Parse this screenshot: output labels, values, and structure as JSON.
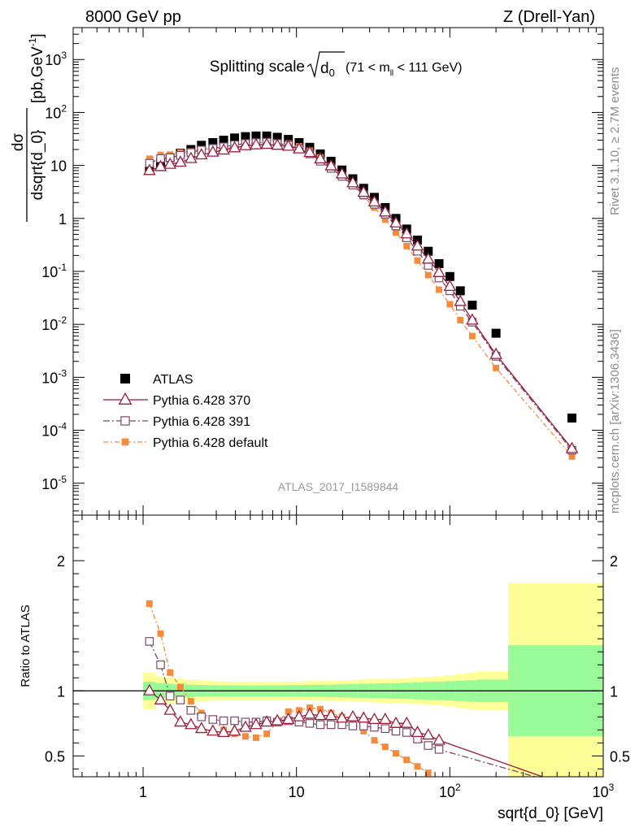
{
  "header": {
    "left": "8000 GeV pp",
    "right": "Z (Drell-Yan)"
  },
  "plot_title": {
    "main": "Splitting scale",
    "symbol": "d",
    "symbol_sub": "0",
    "range_pre": "(71 < m",
    "range_sub": "ll",
    "range_post": " < 111 GeV)"
  },
  "side_labels": {
    "rivet": "Rivet 3.1.10, ≥ 2.7M events",
    "mcplots": "mcplots.cern.ch [arXiv:1306.3436]"
  },
  "analysis_id": "ATLAS_2017_I1589844",
  "colors": {
    "atlas": "#000000",
    "py370": "#9a1b3c",
    "py391": "#7a4a6a",
    "pydef": "#f58a3a",
    "band_inner": "#98fb98",
    "band_outer": "#ffff99"
  },
  "chart_data": [
    {
      "type": "scatter",
      "panel": "main",
      "title": "",
      "ylabel": "dσ/dsqrt{d_0} [pb,GeV⁻¹]",
      "xlabel": "",
      "x_scale": "log",
      "y_scale": "log",
      "xlim": [
        0.35,
        1000
      ],
      "ylim": [
        2.5e-06,
        4000
      ],
      "x_ticks": [
        "1",
        "10",
        "10²",
        "10³"
      ],
      "y_ticks": [
        "10⁻⁵",
        "10⁻⁴",
        "10⁻³",
        "10⁻²",
        "10⁻¹",
        "1",
        "10",
        "10²",
        "10³"
      ],
      "legend_position": "bottom-left",
      "series": [
        {
          "name": "ATLAS",
          "style": "marker-square",
          "x": [
            1.1,
            1.3,
            1.5,
            1.75,
            2.05,
            2.4,
            2.85,
            3.35,
            3.95,
            4.65,
            5.45,
            6.4,
            7.5,
            8.85,
            10.4,
            12.2,
            14.3,
            16.8,
            19.8,
            23.3,
            27.4,
            32.2,
            37.9,
            44.5,
            52.3,
            61.5,
            72.3,
            85,
            100,
            117,
            140,
            200,
            625
          ],
          "y": [
            8,
            11,
            14,
            17,
            20,
            24,
            27,
            30,
            33,
            35,
            36,
            36,
            34,
            31,
            27,
            22,
            16.5,
            12,
            8.2,
            5.6,
            3.7,
            2.5,
            1.6,
            1.0,
            0.63,
            0.39,
            0.24,
            0.14,
            0.08,
            0.043,
            0.023,
            0.0068,
            0.00017
          ]
        },
        {
          "name": "Pythia 6.428 370",
          "style": "line-solid-triangle",
          "x": [
            1.1,
            1.3,
            1.5,
            1.75,
            2.05,
            2.4,
            2.85,
            3.35,
            3.95,
            4.65,
            5.45,
            6.4,
            7.5,
            8.85,
            10.4,
            12.2,
            14.3,
            16.8,
            19.8,
            23.3,
            27.4,
            32.2,
            37.9,
            44.5,
            52.3,
            61.5,
            72.3,
            85,
            100,
            117,
            140,
            200,
            625
          ],
          "y": [
            8,
            9.5,
            10.5,
            11.5,
            13.5,
            15.8,
            17.8,
            19.5,
            21.5,
            23.5,
            24.5,
            25,
            24,
            23,
            20.5,
            17.5,
            13.3,
            9.8,
            6.9,
            4.7,
            3.1,
            2.05,
            1.32,
            0.82,
            0.51,
            0.3,
            0.17,
            0.095,
            0.052,
            0.027,
            0.012,
            0.0027,
            4.5e-05
          ]
        },
        {
          "name": "Pythia 6.428 391",
          "style": "line-dashdot-open-square",
          "x": [
            1.1,
            1.3,
            1.5,
            1.75,
            2.05,
            2.4,
            2.85,
            3.35,
            3.95,
            4.65,
            5.45,
            6.4,
            7.5,
            8.85,
            10.4,
            12.2,
            14.3,
            16.8,
            19.8,
            23.3,
            27.4,
            32.2,
            37.9,
            44.5,
            52.3,
            61.5,
            72.3,
            85,
            100,
            117,
            140,
            200,
            625
          ],
          "y": [
            11,
            13.5,
            14,
            15.5,
            17.5,
            19.5,
            21,
            22.5,
            24.5,
            26,
            27,
            27.5,
            26,
            24,
            20.5,
            16.5,
            12,
            8.8,
            6.2,
            4.25,
            2.8,
            1.85,
            1.2,
            0.72,
            0.43,
            0.24,
            0.13,
            0.075,
            0.043,
            0.022,
            0.011,
            0.0025,
            4.2e-05
          ]
        },
        {
          "name": "Pythia 6.428 default",
          "style": "line-dashdot-filled-square",
          "x": [
            1.1,
            1.3,
            1.5,
            1.75,
            2.05,
            2.4,
            2.85,
            3.35,
            3.95,
            4.65,
            5.45,
            6.4,
            7.5,
            8.85,
            10.4,
            12.2,
            14.3,
            16.8,
            19.8,
            23.3,
            27.4,
            32.2,
            37.9,
            44.5,
            52.3,
            61.5,
            72.3,
            85,
            100,
            117,
            140,
            200,
            625
          ],
          "y": [
            13.4,
            15.8,
            16,
            17.5,
            18.5,
            20,
            21,
            21,
            22,
            23,
            23,
            24,
            26,
            26,
            23,
            19,
            14.2,
            9.7,
            6.6,
            4.3,
            2.6,
            1.6,
            0.95,
            0.54,
            0.3,
            0.16,
            0.085,
            0.045,
            0.024,
            0.012,
            0.006,
            0.0015,
            3.2e-05
          ]
        }
      ]
    },
    {
      "type": "line",
      "panel": "ratio",
      "title": "",
      "ylabel": "Ratio to ATLAS",
      "xlabel": "sqrt{d_0} [GeV]",
      "x_scale": "log",
      "y_scale": "linear",
      "xlim": [
        0.35,
        1000
      ],
      "ylim": [
        0.34,
        2.35
      ],
      "x_ticks": [
        "1",
        "10",
        "10²",
        "10³"
      ],
      "y_ticks": [
        "0.5",
        "1",
        "2"
      ],
      "bands": {
        "edges": [
          1,
          1.2,
          1.4,
          1.6,
          1.9,
          2.2,
          2.6,
          3.1,
          3.6,
          4.3,
          5,
          5.9,
          7,
          8.2,
          9.6,
          11.3,
          13.3,
          15.6,
          18.3,
          21.5,
          25.3,
          29.7,
          34.9,
          41,
          48.1,
          56.5,
          66.4,
          78,
          91.6,
          107.6,
          126.4,
          148.5,
          240,
          1000
        ],
        "inner": [
          0.07,
          0.06,
          0.055,
          0.05,
          0.048,
          0.045,
          0.044,
          0.043,
          0.042,
          0.042,
          0.042,
          0.042,
          0.043,
          0.044,
          0.045,
          0.046,
          0.047,
          0.048,
          0.05,
          0.052,
          0.054,
          0.056,
          0.058,
          0.06,
          0.062,
          0.065,
          0.068,
          0.071,
          0.074,
          0.078,
          0.082,
          0.086,
          0.35
        ],
        "outer": [
          0.14,
          0.11,
          0.1,
          0.09,
          0.085,
          0.08,
          0.075,
          0.072,
          0.07,
          0.07,
          0.07,
          0.07,
          0.07,
          0.07,
          0.072,
          0.074,
          0.076,
          0.078,
          0.08,
          0.083,
          0.086,
          0.089,
          0.092,
          0.095,
          0.098,
          0.102,
          0.107,
          0.112,
          0.12,
          0.13,
          0.14,
          0.15,
          0.83
        ]
      },
      "series": [
        {
          "name": "Pythia 6.428 370",
          "style": "line-solid-triangle",
          "x": [
            1.1,
            1.3,
            1.5,
            1.75,
            2.05,
            2.4,
            2.85,
            3.35,
            3.95,
            4.65,
            5.45,
            6.4,
            7.5,
            8.85,
            10.4,
            12.2,
            14.3,
            16.8,
            19.8,
            23.3,
            27.4,
            32.2,
            37.9,
            44.5,
            52.3,
            61.5,
            72.3,
            85,
            625
          ],
          "y": [
            1.0,
            0.93,
            0.85,
            0.76,
            0.74,
            0.71,
            0.69,
            0.68,
            0.69,
            0.72,
            0.74,
            0.76,
            0.77,
            0.78,
            0.8,
            0.82,
            0.81,
            0.81,
            0.79,
            0.8,
            0.79,
            0.78,
            0.78,
            0.75,
            0.75,
            0.68,
            0.66,
            0.62,
            0.26
          ]
        },
        {
          "name": "Pythia 6.428 391",
          "style": "line-dashdot-open-square",
          "x": [
            1.1,
            1.3,
            1.5,
            1.75,
            2.05,
            2.4,
            2.85,
            3.35,
            3.95,
            4.65,
            5.45,
            6.4,
            7.5,
            8.85,
            10.4,
            12.2,
            14.3,
            16.8,
            19.8,
            23.3,
            27.4,
            32.2,
            37.9,
            44.5,
            52.3,
            61.5,
            72.3,
            85,
            625
          ],
          "y": [
            1.38,
            1.2,
            0.96,
            0.93,
            0.85,
            0.8,
            0.78,
            0.77,
            0.77,
            0.76,
            0.76,
            0.77,
            0.76,
            0.77,
            0.76,
            0.75,
            0.74,
            0.74,
            0.74,
            0.73,
            0.73,
            0.72,
            0.71,
            0.69,
            0.68,
            0.63,
            0.58,
            0.55,
            0.26
          ]
        },
        {
          "name": "Pythia 6.428 default",
          "style": "line-dashdot-filled-square",
          "x": [
            1.1,
            1.3,
            1.5,
            1.75,
            2.05,
            2.4,
            2.85,
            3.35,
            3.95,
            4.65,
            5.45,
            6.4,
            7.5,
            8.85,
            10.4,
            12.2,
            14.3,
            16.8,
            19.8,
            23.3,
            27.4,
            32.2,
            37.9,
            44.5,
            52.3,
            61.5,
            72.3
          ],
          "y": [
            1.67,
            1.44,
            1.14,
            1.03,
            0.92,
            0.83,
            0.78,
            0.7,
            0.67,
            0.65,
            0.64,
            0.67,
            0.76,
            0.84,
            0.85,
            0.87,
            0.86,
            0.83,
            0.8,
            0.75,
            0.69,
            0.62,
            0.57,
            0.52,
            0.47,
            0.42,
            0.37
          ]
        }
      ]
    }
  ]
}
